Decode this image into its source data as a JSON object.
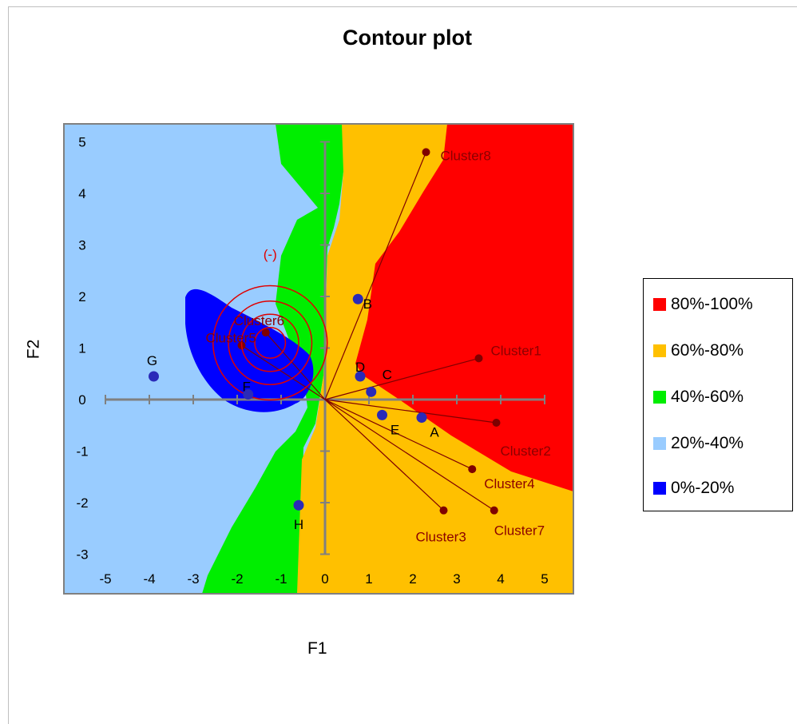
{
  "chart_data": {
    "type": "scatter",
    "title": "Contour plot",
    "xlabel": "F1",
    "ylabel": "F2",
    "xlim": [
      -5,
      5
    ],
    "ylim": [
      -3,
      5
    ],
    "x_ticks": [
      -5,
      -4,
      -3,
      -2,
      -1,
      0,
      1,
      2,
      3,
      4,
      5
    ],
    "y_ticks": [
      -3,
      -2,
      -1,
      0,
      1,
      2,
      3,
      4,
      5
    ],
    "legend": [
      {
        "label": "80%-100%",
        "color": "#ff0000"
      },
      {
        "label": "60%-80%",
        "color": "#ffc000"
      },
      {
        "label": "40%-60%",
        "color": "#00ee00"
      },
      {
        "label": "20%-40%",
        "color": "#99ccff"
      },
      {
        "label": "0%-20%",
        "color": "#0000ff"
      }
    ],
    "legend_position": "right",
    "observations": [
      {
        "label": "A",
        "x": 2.2,
        "y": -0.35
      },
      {
        "label": "B",
        "x": 0.75,
        "y": 1.95
      },
      {
        "label": "C",
        "x": 1.05,
        "y": 0.15
      },
      {
        "label": "D",
        "x": 0.8,
        "y": 0.45
      },
      {
        "label": "E",
        "x": 1.3,
        "y": -0.3
      },
      {
        "label": "F",
        "x": -1.75,
        "y": 0.1
      },
      {
        "label": "G",
        "x": -3.9,
        "y": 0.45
      },
      {
        "label": "H",
        "x": -0.6,
        "y": -2.05
      }
    ],
    "variables": [
      {
        "label": "Cluster1",
        "x": 3.5,
        "y": 0.8
      },
      {
        "label": "Cluster2",
        "x": 3.9,
        "y": -0.45
      },
      {
        "label": "Cluster3",
        "x": 2.7,
        "y": -2.15
      },
      {
        "label": "Cluster4",
        "x": 3.35,
        "y": -1.35
      },
      {
        "label": "Cluster5",
        "x": -1.9,
        "y": 1.05
      },
      {
        "label": "Cluster6",
        "x": -1.35,
        "y": 1.3
      },
      {
        "label": "Cluster7",
        "x": 3.85,
        "y": -2.15
      },
      {
        "label": "Cluster8",
        "x": 2.3,
        "y": 4.8
      }
    ],
    "ideal_point": {
      "label": "(-)",
      "x": -1.25,
      "y": 1.1,
      "radii": [
        0.35,
        0.65,
        0.95,
        1.3
      ]
    }
  }
}
